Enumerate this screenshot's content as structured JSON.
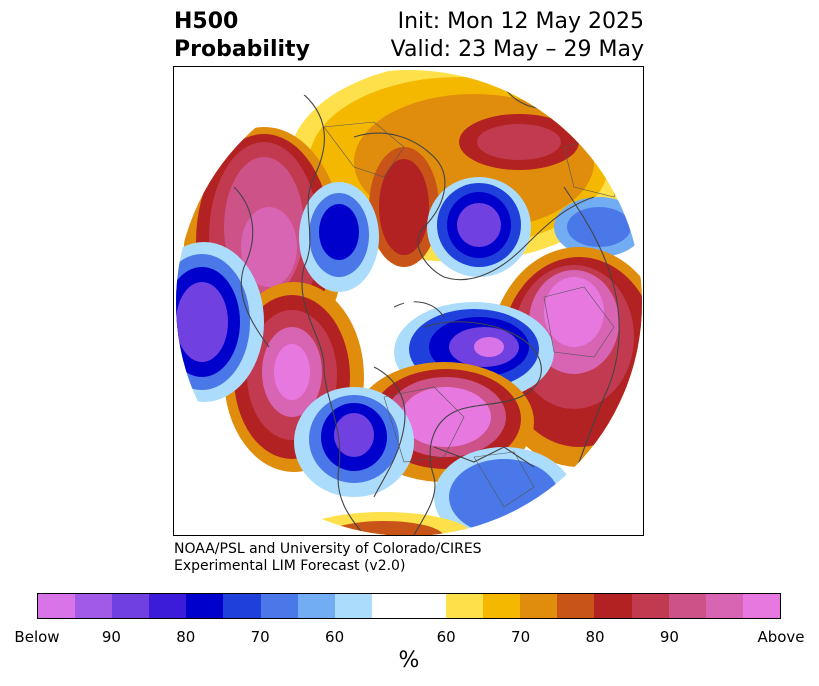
{
  "title": {
    "line1_left": "H500",
    "line2_left": "Probability",
    "line1_right": "Init: Mon 12 May 2025",
    "line2_right": "Valid: 23 May – 29 May"
  },
  "credit": {
    "line1": "NOAA/PSL and University of Colorado/CIRES",
    "line2": "Experimental LIM Forecast (v2.0)"
  },
  "colorbar": {
    "unit": "%",
    "below_colors": [
      "#d874e8",
      "#a05ae6",
      "#7040e0",
      "#3c1cd8",
      "#0000cc",
      "#2040dc",
      "#4a78e8",
      "#72acf2",
      "#acdcfc"
    ],
    "neutral_color": "#ffffff",
    "above_colors": [
      "#fde04a",
      "#f5b800",
      "#e08c0c",
      "#c85418",
      "#b22222",
      "#c23a50",
      "#cc5288",
      "#d864b4",
      "#e678e0"
    ],
    "tick_labels": [
      "Below",
      "90",
      "80",
      "70",
      "60",
      "60",
      "70",
      "80",
      "90",
      "Above"
    ]
  }
}
